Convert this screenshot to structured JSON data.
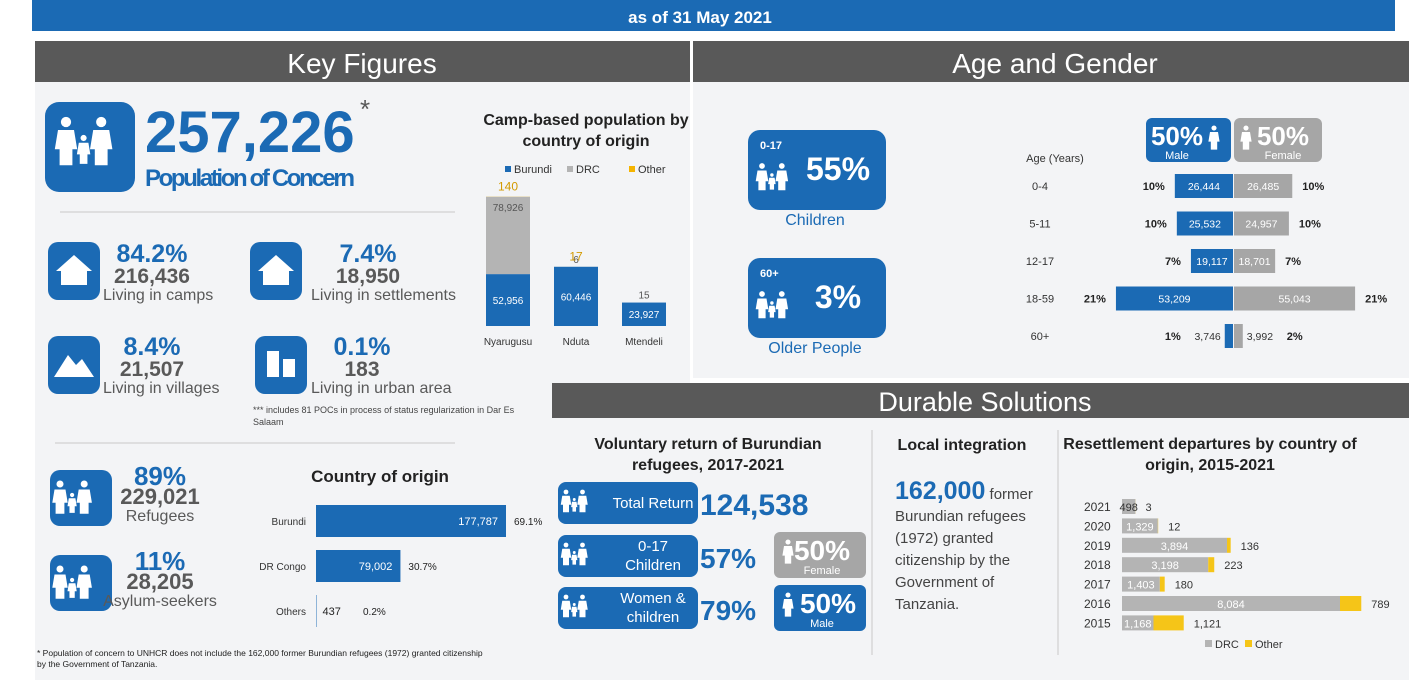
{
  "header": {
    "subtitle": "as of  31 May 2021"
  },
  "key_figures": {
    "title": "Key Figures",
    "total": {
      "value": "257,226",
      "star": "*",
      "label": "Population of Concern"
    },
    "living": [
      {
        "percent": "84.2%",
        "count": "216,436",
        "label": "Living in camps"
      },
      {
        "percent": "7.4%",
        "count": "18,950",
        "label": "Living in settlements"
      },
      {
        "percent": "8.4%",
        "count": "21,507",
        "label": "Living in villages"
      },
      {
        "percent": "0.1%",
        "count": "183",
        "label": "Living in urban area"
      }
    ],
    "note": "*** includes 81 POCs in process of status regularization in Dar Es Salaam",
    "status": [
      {
        "percent": "89%",
        "count": "229,021",
        "label": "Refugees"
      },
      {
        "percent": "11%",
        "count": "28,205",
        "label": "Asylum-seekers"
      }
    ],
    "footnote": "* Population of concern to UNHCR does not include the 162,000 former Burundian refugees (1972) granted citizenship by the Government of Tanzania."
  },
  "camp_chart": {
    "type": "stacked-bar",
    "title": "Camp-based population by country of origin",
    "categories": [
      "Nyarugusu",
      "Nduta",
      "Mtendeli"
    ],
    "series": [
      {
        "name": "Burundi",
        "color": "#1b6ab4",
        "values": [
          52956,
          60446,
          23927
        ],
        "value_labels": [
          "52,956",
          "60,446",
          "23,927"
        ]
      },
      {
        "name": "DRC",
        "color": "#b4b4b4",
        "values": [
          78926,
          6,
          15
        ],
        "value_labels": [
          "78,926",
          "6",
          "15"
        ]
      },
      {
        "name": "Other",
        "color": "#f5b400",
        "values": [
          140,
          17,
          null
        ],
        "value_labels": [
          "140",
          "17",
          null
        ]
      }
    ]
  },
  "origin_chart": {
    "type": "hbar",
    "title": "Country of origin",
    "categories": [
      "Burundi",
      "DR Congo",
      "Others"
    ],
    "values": [
      177787,
      79002,
      437
    ],
    "value_labels": [
      "177,787",
      "79,002",
      "437"
    ],
    "percent_labels": [
      "69.1%",
      "30.7%",
      "0.2%"
    ],
    "color": "#1b6ab4"
  },
  "age_gender": {
    "title": "Age and Gender",
    "groups": [
      {
        "range": "0-17",
        "percent": "55%",
        "label": "Children"
      },
      {
        "range": "60+",
        "percent": "3%",
        "label": "Older People"
      }
    ],
    "pyramid": {
      "type": "pyramid",
      "axis_label": "Age (Years)",
      "male": {
        "percent": "50%",
        "label": "Male"
      },
      "female": {
        "percent": "50%",
        "label": "Female"
      },
      "categories": [
        "0-4",
        "5-11",
        "12-17",
        "18-59",
        "60+"
      ],
      "series": [
        {
          "name": "Male",
          "color": "#1b6ab4",
          "values": [
            26444,
            25532,
            19117,
            53209,
            3746
          ],
          "value_labels": [
            "26,444",
            "25,532",
            "19,117",
            "53,209",
            "3,746"
          ],
          "percent_labels": [
            "10%",
            "10%",
            "7%",
            "21%",
            "1%"
          ]
        },
        {
          "name": "Female",
          "color": "#a6a6a6",
          "values": [
            26485,
            24957,
            18701,
            55043,
            3992
          ],
          "value_labels": [
            "26,485",
            "24,957",
            "18,701",
            "55,043",
            "3,992"
          ],
          "percent_labels": [
            "10%",
            "10%",
            "7%",
            "21%",
            "2%"
          ]
        }
      ]
    }
  },
  "durable_solutions": {
    "title": "Durable Solutions",
    "voluntary_return": {
      "title": "Voluntary return of Burundian refugees,  2017-2021",
      "items": [
        {
          "label": "Total Return",
          "value": "124,538"
        },
        {
          "label": "0-17 Children",
          "value": "57%"
        },
        {
          "label": "Women & children",
          "value": "79%"
        }
      ],
      "female": {
        "percent": "50%",
        "label": "Female"
      },
      "male": {
        "percent": "50%",
        "label": "Male"
      }
    },
    "local_integration": {
      "title": "Local integration",
      "number": "162,000",
      "text": "former Burundian refugees (1972) granted citizenship by the Government of Tanzania."
    },
    "resettlement": {
      "type": "stacked-hbar",
      "title": "Resettlement departures by country of origin, 2015-2021",
      "categories": [
        "2021",
        "2020",
        "2019",
        "2018",
        "2017",
        "2016",
        "2015"
      ],
      "series": [
        {
          "name": "DRC",
          "color": "#b4b4b4",
          "values": [
            498,
            1329,
            3894,
            3198,
            1403,
            8084,
            1168
          ],
          "value_labels": [
            "498",
            "1,329",
            "3,894",
            "3,198",
            "1,403",
            "8,084",
            "1,168"
          ]
        },
        {
          "name": "Other",
          "color": "#f5c518",
          "values": [
            3,
            12,
            136,
            223,
            180,
            789,
            1121
          ],
          "value_labels": [
            "3",
            "12",
            "136",
            "223",
            "180",
            "789",
            "1,121"
          ]
        }
      ]
    }
  }
}
